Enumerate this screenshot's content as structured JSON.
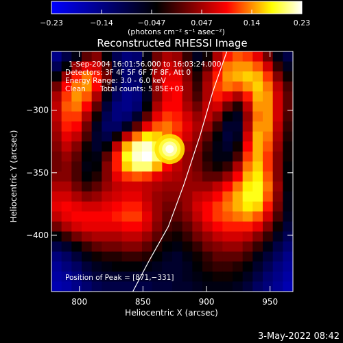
{
  "chart_data": {
    "type": "heatmap",
    "title": "Reconstructed RHESSI Image",
    "xlabel": "Heliocentric X (arcsec)",
    "ylabel": "Heliocentric Y (arcsec)",
    "xlim": [
      778,
      968
    ],
    "ylim": [
      -445,
      -253
    ],
    "x_ticks": [
      800,
      850,
      900,
      950
    ],
    "y_ticks": [
      -400,
      -350,
      -300
    ],
    "colorbar": {
      "label": "(photons cm⁻² s⁻¹ asec⁻²)",
      "min": -0.23,
      "max": 0.23,
      "ticks": [
        "−0.23",
        "−0.14",
        "−0.047",
        "0.047",
        "0.14",
        "0.23"
      ],
      "colormap": [
        "#0000ff",
        "#000000",
        "#ff0000",
        "#ffff00",
        "#ffffff"
      ]
    },
    "annotations": [
      "1-Sep-2004 16:01:56.000 to 16:03:24.000",
      "Detectors: 3F 4F 5F 6F 7F 8F, Att 0",
      "Energy Range: 3.0 - 6.0 keV",
      "Clean",
      "Total counts: 5.85E+03"
    ],
    "peak_label": "Position of Peak = [871,−331]",
    "peak": {
      "x": 871,
      "y": -331,
      "value": 0.23
    },
    "limb_curve": [
      [
        842,
        -445
      ],
      [
        855,
        -420
      ],
      [
        870,
        -393
      ],
      [
        882,
        -360
      ],
      [
        895,
        -320
      ],
      [
        905,
        -285
      ],
      [
        916,
        -253
      ]
    ],
    "grid_cols": 24,
    "grid_rows": 24,
    "intensity_grid": [
      [
        -0.14,
        -0.09,
        -0.05,
        0.01,
        0.03,
        -0.04,
        -0.1,
        -0.13,
        -0.12,
        -0.05,
        0.02,
        0.05,
        0.04,
        -0.01,
        -0.06,
        -0.03,
        0.05,
        0.1,
        0.12,
        0.11,
        0.08,
        0.02,
        -0.05,
        -0.09
      ],
      [
        -0.1,
        -0.04,
        0.04,
        0.08,
        0.07,
        0.0,
        -0.08,
        -0.12,
        -0.1,
        -0.03,
        0.04,
        0.07,
        0.06,
        0.02,
        -0.04,
        0.01,
        0.08,
        0.13,
        0.14,
        0.14,
        0.12,
        0.07,
        -0.01,
        -0.06
      ],
      [
        -0.04,
        0.04,
        0.1,
        0.13,
        0.1,
        0.02,
        -0.07,
        -0.12,
        -0.11,
        -0.04,
        0.05,
        0.08,
        0.08,
        0.03,
        -0.02,
        0.04,
        0.1,
        0.14,
        0.15,
        0.16,
        0.15,
        0.11,
        0.03,
        -0.03
      ],
      [
        0.02,
        0.09,
        0.13,
        0.14,
        0.09,
        -0.01,
        -0.09,
        -0.13,
        -0.12,
        -0.05,
        0.04,
        0.09,
        0.09,
        0.04,
        -0.01,
        0.05,
        0.11,
        0.13,
        0.12,
        0.14,
        0.16,
        0.13,
        0.06,
        0.0
      ],
      [
        0.05,
        0.11,
        0.14,
        0.12,
        0.05,
        -0.05,
        -0.11,
        -0.14,
        -0.13,
        -0.06,
        0.03,
        0.08,
        0.09,
        0.04,
        0.0,
        0.05,
        0.1,
        0.08,
        0.05,
        0.1,
        0.15,
        0.14,
        0.07,
        0.01
      ],
      [
        0.06,
        0.12,
        0.13,
        0.09,
        0.01,
        -0.08,
        -0.13,
        -0.14,
        -0.12,
        -0.04,
        0.05,
        0.09,
        0.09,
        0.05,
        0.02,
        0.06,
        0.07,
        0.02,
        -0.02,
        0.06,
        0.14,
        0.14,
        0.07,
        0.01
      ],
      [
        0.06,
        0.11,
        0.11,
        0.05,
        -0.03,
        -0.1,
        -0.13,
        -0.12,
        -0.07,
        0.01,
        0.08,
        0.11,
        0.1,
        0.07,
        0.04,
        0.06,
        0.03,
        -0.04,
        -0.06,
        0.04,
        0.13,
        0.14,
        0.07,
        0.0
      ],
      [
        0.05,
        0.1,
        0.09,
        0.02,
        -0.06,
        -0.11,
        -0.11,
        -0.06,
        0.01,
        0.08,
        0.12,
        0.13,
        0.11,
        0.08,
        0.05,
        0.04,
        -0.01,
        -0.07,
        -0.07,
        0.05,
        0.14,
        0.14,
        0.06,
        -0.01
      ],
      [
        0.04,
        0.08,
        0.06,
        0.0,
        -0.07,
        -0.09,
        -0.03,
        0.06,
        0.13,
        0.17,
        0.16,
        0.13,
        0.1,
        0.07,
        0.04,
        0.01,
        -0.04,
        -0.08,
        -0.06,
        0.07,
        0.15,
        0.13,
        0.05,
        -0.02
      ],
      [
        0.03,
        0.06,
        0.03,
        -0.03,
        -0.07,
        -0.04,
        0.06,
        0.15,
        0.21,
        0.22,
        0.19,
        0.13,
        0.08,
        0.05,
        0.03,
        -0.01,
        -0.05,
        -0.07,
        -0.03,
        0.09,
        0.15,
        0.12,
        0.04,
        -0.03
      ],
      [
        0.02,
        0.04,
        0.01,
        -0.04,
        -0.05,
        0.01,
        0.1,
        0.18,
        0.22,
        0.23,
        0.2,
        0.12,
        0.07,
        0.04,
        0.02,
        -0.02,
        -0.05,
        -0.05,
        0.0,
        0.11,
        0.15,
        0.11,
        0.03,
        -0.03
      ],
      [
        0.02,
        0.03,
        0.0,
        -0.05,
        -0.04,
        0.03,
        0.1,
        0.16,
        0.2,
        0.2,
        0.15,
        0.09,
        0.06,
        0.04,
        0.02,
        -0.01,
        -0.03,
        -0.01,
        0.05,
        0.13,
        0.16,
        0.11,
        0.03,
        -0.04
      ],
      [
        0.03,
        0.03,
        0.0,
        -0.04,
        -0.02,
        0.03,
        0.08,
        0.11,
        0.12,
        0.11,
        0.08,
        0.06,
        0.05,
        0.04,
        0.03,
        0.01,
        0.01,
        0.04,
        0.09,
        0.15,
        0.17,
        0.12,
        0.03,
        -0.04
      ],
      [
        0.05,
        0.05,
        0.02,
        -0.01,
        0.01,
        0.04,
        0.06,
        0.07,
        0.07,
        0.06,
        0.05,
        0.04,
        0.04,
        0.04,
        0.04,
        0.04,
        0.06,
        0.09,
        0.13,
        0.17,
        0.18,
        0.13,
        0.04,
        -0.04
      ],
      [
        0.07,
        0.07,
        0.05,
        0.03,
        0.04,
        0.06,
        0.07,
        0.08,
        0.08,
        0.06,
        0.04,
        0.03,
        0.03,
        0.04,
        0.06,
        0.07,
        0.09,
        0.12,
        0.15,
        0.18,
        0.18,
        0.12,
        0.03,
        -0.05
      ],
      [
        0.08,
        0.09,
        0.08,
        0.07,
        0.07,
        0.08,
        0.09,
        0.1,
        0.1,
        0.07,
        0.04,
        0.02,
        0.02,
        0.04,
        0.07,
        0.09,
        0.11,
        0.13,
        0.15,
        0.17,
        0.16,
        0.1,
        0.02,
        -0.05
      ],
      [
        0.06,
        0.08,
        0.09,
        0.09,
        0.09,
        0.09,
        0.1,
        0.11,
        0.11,
        0.08,
        0.04,
        0.01,
        0.01,
        0.03,
        0.06,
        0.09,
        0.11,
        0.12,
        0.13,
        0.14,
        0.12,
        0.07,
        0.0,
        -0.06
      ],
      [
        0.02,
        0.05,
        0.07,
        0.08,
        0.08,
        0.08,
        0.08,
        0.09,
        0.09,
        0.07,
        0.03,
        0.0,
        -0.01,
        0.01,
        0.04,
        0.07,
        0.09,
        0.1,
        0.1,
        0.1,
        0.08,
        0.03,
        -0.03,
        -0.08
      ],
      [
        -0.04,
        -0.01,
        0.02,
        0.04,
        0.05,
        0.05,
        0.05,
        0.06,
        0.06,
        0.04,
        0.01,
        -0.02,
        -0.03,
        -0.01,
        0.02,
        0.04,
        0.06,
        0.07,
        0.07,
        0.06,
        0.03,
        -0.01,
        -0.06,
        -0.1
      ],
      [
        -0.09,
        -0.07,
        -0.04,
        -0.01,
        0.01,
        0.02,
        0.02,
        0.03,
        0.03,
        0.01,
        -0.02,
        -0.04,
        -0.05,
        -0.03,
        -0.01,
        0.02,
        0.03,
        0.04,
        0.04,
        0.02,
        -0.01,
        -0.05,
        -0.09,
        -0.12
      ],
      [
        -0.13,
        -0.11,
        -0.08,
        -0.05,
        -0.03,
        -0.02,
        -0.02,
        -0.01,
        -0.01,
        -0.02,
        -0.04,
        -0.06,
        -0.07,
        -0.05,
        -0.03,
        -0.01,
        0.01,
        0.01,
        0.01,
        -0.01,
        -0.05,
        -0.08,
        -0.11,
        -0.14
      ],
      [
        -0.15,
        -0.13,
        -0.11,
        -0.08,
        -0.06,
        -0.05,
        -0.04,
        -0.04,
        -0.04,
        -0.05,
        -0.06,
        -0.07,
        -0.07,
        -0.06,
        -0.04,
        -0.02,
        -0.01,
        -0.01,
        -0.02,
        -0.04,
        -0.07,
        -0.1,
        -0.13,
        -0.15
      ],
      [
        -0.16,
        -0.15,
        -0.13,
        -0.1,
        -0.08,
        -0.07,
        -0.07,
        -0.07,
        -0.07,
        -0.07,
        -0.07,
        -0.07,
        -0.07,
        -0.06,
        -0.05,
        -0.04,
        -0.03,
        -0.03,
        -0.04,
        -0.06,
        -0.09,
        -0.12,
        -0.14,
        -0.16
      ],
      [
        -0.17,
        -0.16,
        -0.14,
        -0.12,
        -0.1,
        -0.09,
        -0.09,
        -0.09,
        -0.09,
        -0.09,
        -0.08,
        -0.08,
        -0.07,
        -0.07,
        -0.06,
        -0.05,
        -0.05,
        -0.05,
        -0.06,
        -0.08,
        -0.11,
        -0.13,
        -0.15,
        -0.17
      ]
    ]
  },
  "footer": {
    "date": "3-May-2022 08:42"
  }
}
